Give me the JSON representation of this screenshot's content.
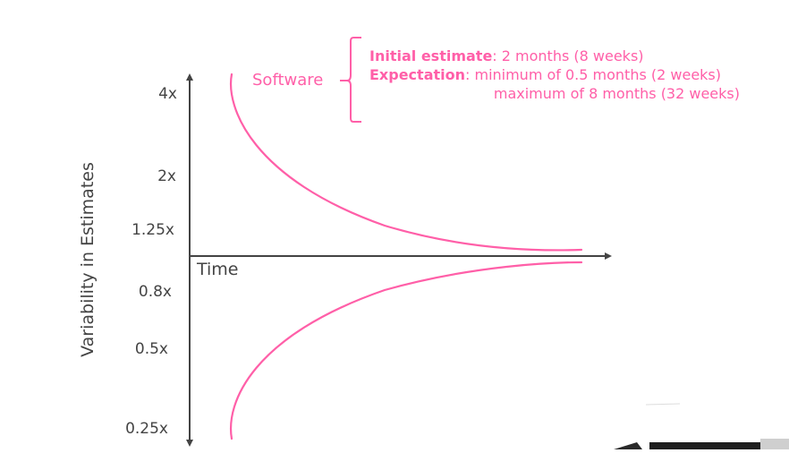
{
  "diagram": {
    "y_axis_label": "Variability in Estimates",
    "x_axis_label": "Time",
    "y_ticks": [
      "4x",
      "2x",
      "1.25x",
      "0.8x",
      "0.5x",
      "0.25x"
    ],
    "series_label": "Software",
    "note": {
      "initial_label": "Initial estimate",
      "initial_value": ": 2 months (8 weeks)",
      "expectation_label": "Expectation",
      "expectation_min": ": minimum of 0.5 months (2 weeks)",
      "expectation_max": "maximum of 8 months (32 weeks)"
    },
    "colors": {
      "curve": "#ff5fa8",
      "axis": "#444444"
    }
  }
}
